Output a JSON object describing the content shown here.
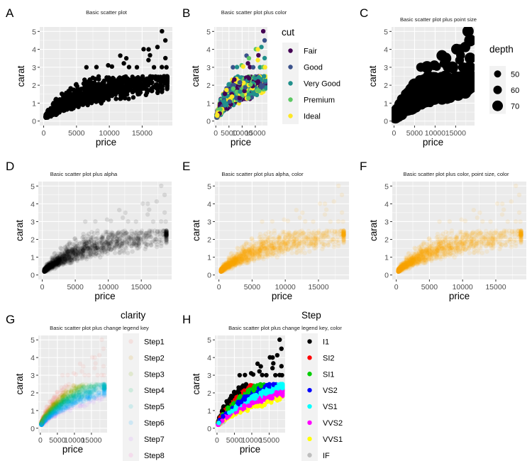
{
  "chart_data": [
    {
      "tag": "A",
      "type": "scatter",
      "title": "Basic scatter plot",
      "xlabel": "price",
      "ylabel": "carat",
      "xlim": [
        -600,
        19600
      ],
      "ylim": [
        -0.25,
        5.25
      ],
      "xticks": [
        0,
        5000,
        10000,
        15000
      ],
      "xtick_labels": [
        "0",
        "5000",
        "10000",
        "15000"
      ],
      "yticks": [
        0,
        1,
        2,
        3,
        4,
        5
      ],
      "ytick_labels": [
        "0",
        "1",
        "2",
        "3",
        "4",
        "5"
      ],
      "grid": true,
      "point_color": "#000000",
      "alpha": 1,
      "point_size": "medium",
      "mapping": "none",
      "outliers": [
        [
          18018,
          5.01
        ],
        [
          18531,
          4.5
        ],
        [
          17329,
          4.13
        ],
        [
          15223,
          4.01
        ],
        [
          15984,
          4.0
        ],
        [
          16193,
          3.67
        ],
        [
          11668,
          3.65
        ],
        [
          18541,
          3.51
        ],
        [
          12587,
          3.5
        ],
        [
          15964,
          3.4
        ],
        [
          12210,
          3.22
        ],
        [
          6512,
          3.0
        ],
        [
          8040,
          3.01
        ],
        [
          9823,
          3.11
        ],
        [
          10400,
          3.04
        ],
        [
          13000,
          3.01
        ],
        [
          14200,
          3.0
        ],
        [
          16800,
          3.0
        ],
        [
          18000,
          3.01
        ],
        [
          18700,
          3.0
        ]
      ]
    },
    {
      "tag": "B",
      "type": "scatter",
      "title": "Basic scatter plot plus color",
      "xlabel": "price",
      "ylabel": "carat",
      "xlim": [
        -600,
        19600
      ],
      "ylim": [
        -0.25,
        5.25
      ],
      "xticks": [
        0,
        5000,
        10000,
        15000
      ],
      "xtick_labels": [
        "0",
        "5000",
        "10000",
        "15000"
      ],
      "yticks": [
        0,
        1,
        2,
        3,
        4,
        5
      ],
      "ytick_labels": [
        "0",
        "1",
        "2",
        "3",
        "4",
        "5"
      ],
      "grid": true,
      "mapping": "color = cut",
      "legend": {
        "title": "cut",
        "position": "right",
        "entries": [
          {
            "label": "Fair",
            "color": "#440154"
          },
          {
            "label": "Good",
            "color": "#3B528B"
          },
          {
            "label": "Very Good",
            "color": "#21908C"
          },
          {
            "label": "Premium",
            "color": "#5DC863"
          },
          {
            "label": "Ideal",
            "color": "#FDE725"
          }
        ]
      }
    },
    {
      "tag": "C",
      "type": "scatter",
      "title": "Basic scatter plot plus point size",
      "xlabel": "price",
      "ylabel": "carat",
      "xlim": [
        -600,
        19600
      ],
      "ylim": [
        -0.25,
        5.25
      ],
      "xticks": [
        0,
        5000,
        10000,
        15000
      ],
      "xtick_labels": [
        "0",
        "5000",
        "10000",
        "15000"
      ],
      "yticks": [
        0,
        1,
        2,
        3,
        4,
        5
      ],
      "ytick_labels": [
        "0",
        "1",
        "2",
        "3",
        "4",
        "5"
      ],
      "grid": true,
      "point_color": "#000000",
      "mapping": "size = depth",
      "legend": {
        "title": "depth",
        "position": "right",
        "entries": [
          {
            "label": "50",
            "value": 50
          },
          {
            "label": "60",
            "value": 60
          },
          {
            "label": "70",
            "value": 70
          }
        ]
      }
    },
    {
      "tag": "D",
      "type": "scatter",
      "title": "Basic scatter plot plus alpha",
      "xlabel": "price",
      "ylabel": "carat",
      "xlim": [
        -600,
        19600
      ],
      "ylim": [
        -0.25,
        5.25
      ],
      "xticks": [
        0,
        5000,
        10000,
        15000
      ],
      "xtick_labels": [
        "0",
        "5000",
        "10000",
        "15000"
      ],
      "yticks": [
        0,
        1,
        2,
        3,
        4,
        5
      ],
      "ytick_labels": [
        "0",
        "1",
        "2",
        "3",
        "4",
        "5"
      ],
      "grid": true,
      "point_color": "#000000",
      "alpha": 0.1,
      "mapping": "none"
    },
    {
      "tag": "E",
      "type": "scatter",
      "title": "Basic scatter plot plus alpha, color",
      "xlabel": "price",
      "ylabel": "carat",
      "xlim": [
        -600,
        19600
      ],
      "ylim": [
        -0.25,
        5.25
      ],
      "xticks": [
        0,
        5000,
        10000,
        15000
      ],
      "xtick_labels": [
        "0",
        "5000",
        "10000",
        "15000"
      ],
      "yticks": [
        0,
        1,
        2,
        3,
        4,
        5
      ],
      "ytick_labels": [
        "0",
        "1",
        "2",
        "3",
        "4",
        "5"
      ],
      "grid": true,
      "point_color": "#FFA500",
      "alpha": 0.1,
      "mapping": "none"
    },
    {
      "tag": "F",
      "type": "scatter",
      "title": "Basic scatter plot plus color, point size, color",
      "xlabel": "price",
      "ylabel": "carat",
      "xlim": [
        -600,
        19600
      ],
      "ylim": [
        -0.25,
        5.25
      ],
      "xticks": [
        0,
        5000,
        10000,
        15000
      ],
      "xtick_labels": [
        "0",
        "5000",
        "10000",
        "15000"
      ],
      "yticks": [
        0,
        1,
        2,
        3,
        4,
        5
      ],
      "ytick_labels": [
        "0",
        "1",
        "2",
        "3",
        "4",
        "5"
      ],
      "grid": true,
      "point_color": "#FFA500",
      "alpha": 0.1,
      "mapping": "none"
    },
    {
      "tag": "G",
      "type": "scatter",
      "title": "Basic scatter plot plus change legend key",
      "xlabel": "price",
      "ylabel": "carat",
      "xlim": [
        -600,
        19600
      ],
      "ylim": [
        -0.25,
        5.25
      ],
      "xticks": [
        0,
        5000,
        10000,
        15000
      ],
      "xtick_labels": [
        "0",
        "5000",
        "10000",
        "15000"
      ],
      "yticks": [
        0,
        1,
        2,
        3,
        4,
        5
      ],
      "ytick_labels": [
        "0",
        "1",
        "2",
        "3",
        "4",
        "5"
      ],
      "grid": true,
      "alpha": 0.1,
      "mapping": "color = clarity",
      "legend": {
        "title": "clarity",
        "position": "right",
        "entries": [
          {
            "label": "Step1",
            "color": "#F8766D"
          },
          {
            "label": "Step2",
            "color": "#CD9600"
          },
          {
            "label": "Step3",
            "color": "#7CAE00"
          },
          {
            "label": "Step4",
            "color": "#00BE67"
          },
          {
            "label": "Step5",
            "color": "#00BFC4"
          },
          {
            "label": "Step6",
            "color": "#00A9FF"
          },
          {
            "label": "Step7",
            "color": "#C77CFF"
          },
          {
            "label": "Step8",
            "color": "#FF61CC"
          }
        ]
      }
    },
    {
      "tag": "H",
      "type": "scatter",
      "title": "Basic scatter plot plus change legend key, color",
      "xlabel": "price",
      "ylabel": "carat",
      "xlim": [
        -600,
        19600
      ],
      "ylim": [
        -0.25,
        5.25
      ],
      "xticks": [
        0,
        5000,
        10000,
        15000
      ],
      "xtick_labels": [
        "0",
        "5000",
        "10000",
        "15000"
      ],
      "yticks": [
        0,
        1,
        2,
        3,
        4,
        5
      ],
      "ytick_labels": [
        "0",
        "1",
        "2",
        "3",
        "4",
        "5"
      ],
      "grid": true,
      "alpha": 1,
      "mapping": "color = clarity",
      "legend": {
        "title": "Step",
        "position": "right",
        "entries": [
          {
            "label": "I1",
            "color": "#000000"
          },
          {
            "label": "SI2",
            "color": "#FF0000"
          },
          {
            "label": "SI1",
            "color": "#00CD00"
          },
          {
            "label": "VS2",
            "color": "#0000FF"
          },
          {
            "label": "VS1",
            "color": "#00FFFF"
          },
          {
            "label": "VVS2",
            "color": "#FF00FF"
          },
          {
            "label": "VVS1",
            "color": "#FFFF00"
          },
          {
            "label": "IF",
            "color": "#BEBEBE"
          }
        ]
      }
    }
  ]
}
